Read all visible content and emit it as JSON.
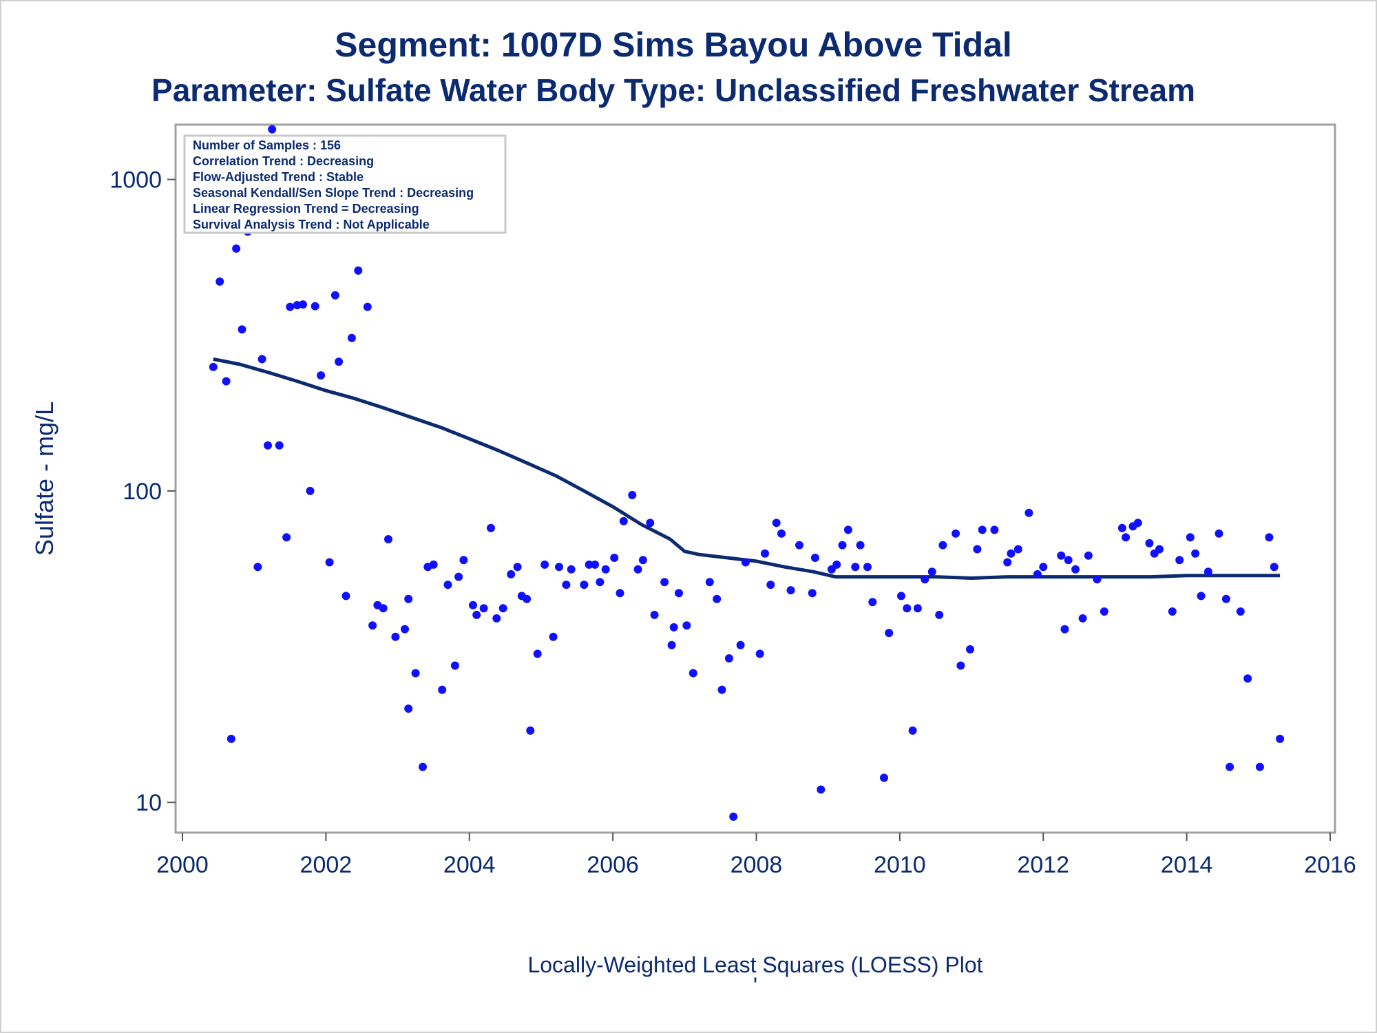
{
  "chart_data": {
    "type": "scatter",
    "title": "Segment: 1007D  Sims Bayou Above Tidal",
    "subtitle": "Parameter: Sulfate   Water Body Type: Unclassified Freshwater Stream",
    "xlabel": "Locally-Weighted Least Squares (LOESS) Plot",
    "ylabel": "Sulfate - mg/L",
    "footnote": "'",
    "xlim": [
      2000,
      2016
    ],
    "ylim": [
      8,
      1500
    ],
    "yscale": "log",
    "grid": false,
    "x_ticks": [
      "2000",
      "2002",
      "2004",
      "2006",
      "2008",
      "2010",
      "2012",
      "2014",
      "2016"
    ],
    "y_ticks": [
      "10",
      "100",
      "1000"
    ],
    "y_tick_values": [
      10,
      100,
      1000
    ],
    "stats_box": {
      "lines": [
        "Number of Samples : 156",
        "Correlation Trend : Decreasing",
        "Flow-Adjusted Trend : Stable",
        "Seasonal Kendall/Sen Slope Trend : Decreasing",
        "Linear Regression Trend = Decreasing",
        "Survival Analysis Trend : Not Applicable"
      ]
    },
    "colors": {
      "points": "#1010ff",
      "loess": "#0b2a70",
      "text": "#0b2a70",
      "frame": "#a0a0a0"
    },
    "series": [
      {
        "type": "scatter",
        "points": [
          [
            2000.43,
            250
          ],
          [
            2000.52,
            470
          ],
          [
            2000.61,
            225
          ],
          [
            2000.68,
            16
          ],
          [
            2000.75,
            600
          ],
          [
            2000.83,
            330
          ],
          [
            2000.91,
            680
          ],
          [
            2001.05,
            57
          ],
          [
            2001.11,
            265
          ],
          [
            2001.19,
            140
          ],
          [
            2001.25,
            1450
          ],
          [
            2001.35,
            140
          ],
          [
            2001.45,
            71
          ],
          [
            2001.5,
            390
          ],
          [
            2001.6,
            395
          ],
          [
            2001.68,
            397
          ],
          [
            2001.78,
            100
          ],
          [
            2001.85,
            392
          ],
          [
            2001.93,
            235
          ],
          [
            2002.05,
            59
          ],
          [
            2002.13,
            425
          ],
          [
            2002.18,
            260
          ],
          [
            2002.28,
            46
          ],
          [
            2002.36,
            310
          ],
          [
            2002.45,
            510
          ],
          [
            2002.58,
            390
          ],
          [
            2002.65,
            37
          ],
          [
            2002.72,
            43
          ],
          [
            2002.8,
            42
          ],
          [
            2002.87,
            70
          ],
          [
            2002.97,
            34
          ],
          [
            2003.1,
            36
          ],
          [
            2003.15,
            45
          ],
          [
            2003.15,
            20
          ],
          [
            2003.25,
            26
          ],
          [
            2003.35,
            13
          ],
          [
            2003.42,
            57
          ],
          [
            2003.5,
            58
          ],
          [
            2003.62,
            23
          ],
          [
            2003.7,
            50
          ],
          [
            2003.8,
            27.5
          ],
          [
            2003.85,
            53
          ],
          [
            2003.92,
            60
          ],
          [
            2004.05,
            43
          ],
          [
            2004.1,
            40
          ],
          [
            2004.2,
            42
          ],
          [
            2004.3,
            76
          ],
          [
            2004.38,
            39
          ],
          [
            2004.47,
            42
          ],
          [
            2004.58,
            54
          ],
          [
            2004.67,
            57
          ],
          [
            2004.73,
            46
          ],
          [
            2004.8,
            45
          ],
          [
            2004.85,
            17
          ],
          [
            2004.95,
            30
          ],
          [
            2005.05,
            58
          ],
          [
            2005.17,
            34
          ],
          [
            2005.25,
            57
          ],
          [
            2005.35,
            50
          ],
          [
            2005.42,
            56
          ],
          [
            2005.6,
            50
          ],
          [
            2005.67,
            58
          ],
          [
            2005.75,
            58
          ],
          [
            2005.82,
            51
          ],
          [
            2005.9,
            56
          ],
          [
            2006.02,
            61
          ],
          [
            2006.1,
            47
          ],
          [
            2006.15,
            80
          ],
          [
            2006.27,
            97
          ],
          [
            2006.35,
            56
          ],
          [
            2006.42,
            60
          ],
          [
            2006.52,
            79
          ],
          [
            2006.58,
            40
          ],
          [
            2006.72,
            51
          ],
          [
            2006.82,
            32
          ],
          [
            2006.85,
            36.5
          ],
          [
            2006.92,
            47
          ],
          [
            2007.03,
            37
          ],
          [
            2007.12,
            26
          ],
          [
            2007.35,
            51
          ],
          [
            2007.45,
            45
          ],
          [
            2007.52,
            23
          ],
          [
            2007.62,
            29
          ],
          [
            2007.68,
            9
          ],
          [
            2007.78,
            32
          ],
          [
            2007.85,
            59
          ],
          [
            2008.05,
            30
          ],
          [
            2008.12,
            63
          ],
          [
            2008.2,
            50
          ],
          [
            2008.28,
            79
          ],
          [
            2008.35,
            73
          ],
          [
            2008.48,
            48
          ],
          [
            2008.6,
            67
          ],
          [
            2008.78,
            47
          ],
          [
            2008.82,
            61
          ],
          [
            2008.9,
            11
          ],
          [
            2009.05,
            56
          ],
          [
            2009.12,
            58
          ],
          [
            2009.2,
            67
          ],
          [
            2009.28,
            75
          ],
          [
            2009.38,
            57
          ],
          [
            2009.45,
            67
          ],
          [
            2009.55,
            57
          ],
          [
            2009.62,
            44
          ],
          [
            2009.78,
            12
          ],
          [
            2009.85,
            35
          ],
          [
            2010.02,
            46
          ],
          [
            2010.1,
            42
          ],
          [
            2010.18,
            17
          ],
          [
            2010.25,
            42
          ],
          [
            2010.35,
            52
          ],
          [
            2010.45,
            55
          ],
          [
            2010.55,
            40
          ],
          [
            2010.6,
            67
          ],
          [
            2010.78,
            73
          ],
          [
            2010.85,
            27.5
          ],
          [
            2010.98,
            31
          ],
          [
            2011.08,
            65
          ],
          [
            2011.15,
            75
          ],
          [
            2011.32,
            75
          ],
          [
            2011.5,
            59
          ],
          [
            2011.55,
            63
          ],
          [
            2011.65,
            65
          ],
          [
            2011.8,
            85
          ],
          [
            2011.92,
            54
          ],
          [
            2012.0,
            57
          ],
          [
            2012.25,
            62
          ],
          [
            2012.3,
            36
          ],
          [
            2012.35,
            60
          ],
          [
            2012.45,
            56
          ],
          [
            2012.55,
            39
          ],
          [
            2012.63,
            62
          ],
          [
            2012.75,
            52
          ],
          [
            2012.85,
            41
          ],
          [
            2013.1,
            76
          ],
          [
            2013.15,
            71
          ],
          [
            2013.25,
            77
          ],
          [
            2013.32,
            79
          ],
          [
            2013.48,
            68
          ],
          [
            2013.55,
            63
          ],
          [
            2013.62,
            65
          ],
          [
            2013.8,
            41
          ],
          [
            2013.9,
            60
          ],
          [
            2014.05,
            71
          ],
          [
            2014.12,
            63
          ],
          [
            2014.2,
            46
          ],
          [
            2014.3,
            55
          ],
          [
            2014.45,
            73
          ],
          [
            2014.55,
            45
          ],
          [
            2014.6,
            13
          ],
          [
            2014.75,
            41
          ],
          [
            2014.85,
            25
          ],
          [
            2015.02,
            13
          ],
          [
            2015.15,
            71
          ],
          [
            2015.22,
            57
          ],
          [
            2015.3,
            16
          ]
        ]
      },
      {
        "type": "line",
        "points": [
          [
            2000.43,
            265
          ],
          [
            2000.8,
            255
          ],
          [
            2001.2,
            240
          ],
          [
            2001.6,
            225
          ],
          [
            2002.0,
            210
          ],
          [
            2002.4,
            198
          ],
          [
            2002.8,
            185
          ],
          [
            2003.2,
            172
          ],
          [
            2003.6,
            160
          ],
          [
            2004.0,
            147
          ],
          [
            2004.4,
            135
          ],
          [
            2004.8,
            123
          ],
          [
            2005.2,
            112
          ],
          [
            2005.6,
            100
          ],
          [
            2006.0,
            89
          ],
          [
            2006.4,
            78
          ],
          [
            2006.8,
            70
          ],
          [
            2007.0,
            64
          ],
          [
            2007.2,
            62.5
          ],
          [
            2007.6,
            61
          ],
          [
            2008.0,
            59.5
          ],
          [
            2008.4,
            57
          ],
          [
            2008.8,
            55
          ],
          [
            2009.1,
            53
          ],
          [
            2009.5,
            53
          ],
          [
            2010.0,
            53
          ],
          [
            2010.5,
            53
          ],
          [
            2011.0,
            52.5
          ],
          [
            2011.5,
            53
          ],
          [
            2012.0,
            53
          ],
          [
            2012.5,
            53
          ],
          [
            2013.0,
            53
          ],
          [
            2013.5,
            53
          ],
          [
            2014.0,
            53.5
          ],
          [
            2014.5,
            53.5
          ],
          [
            2015.0,
            53.5
          ],
          [
            2015.3,
            53.5
          ]
        ]
      }
    ]
  }
}
